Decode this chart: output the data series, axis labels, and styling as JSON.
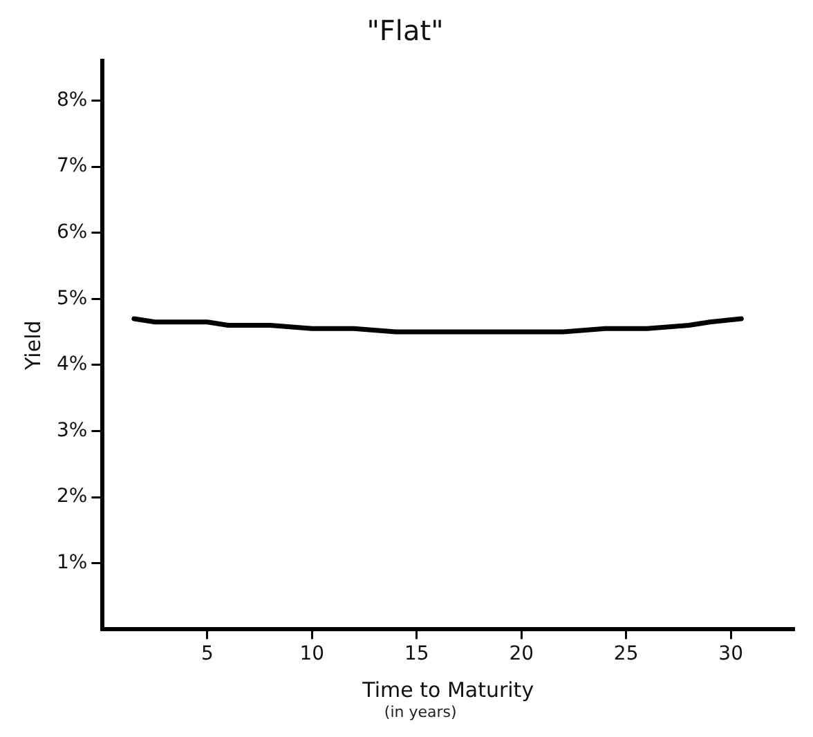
{
  "chart_data": {
    "type": "line",
    "title": "\"Flat\"",
    "xlabel": "Time to Maturity",
    "ylabel": "Yield",
    "annotations": [
      "(in years)"
    ],
    "x": [
      1.5,
      2.5,
      5,
      6,
      8,
      10,
      12,
      14,
      16,
      18,
      20,
      22,
      24,
      26,
      28,
      29,
      30.5
    ],
    "series": [
      {
        "color": "#000000",
        "values": [
          4.7,
          4.65,
          4.65,
          4.6,
          4.6,
          4.55,
          4.55,
          4.5,
          4.5,
          4.5,
          4.5,
          4.5,
          4.55,
          4.55,
          4.6,
          4.65,
          4.7
        ]
      }
    ],
    "xlim": [
      0,
      33
    ],
    "xticks": [
      5,
      10,
      15,
      20,
      25,
      30
    ],
    "ylim": [
      0,
      8.6
    ],
    "yticks": [
      {
        "value": 1,
        "label": "1%"
      },
      {
        "value": 2,
        "label": "2%"
      },
      {
        "value": 3,
        "label": "3%"
      },
      {
        "value": 4,
        "label": "4%"
      },
      {
        "value": 5,
        "label": "5%"
      },
      {
        "value": 6,
        "label": "6%"
      },
      {
        "value": 7,
        "label": "7%"
      },
      {
        "value": 8,
        "label": "8%"
      }
    ],
    "grid": false,
    "legend": false,
    "marker": "none",
    "line_style": "solid"
  }
}
